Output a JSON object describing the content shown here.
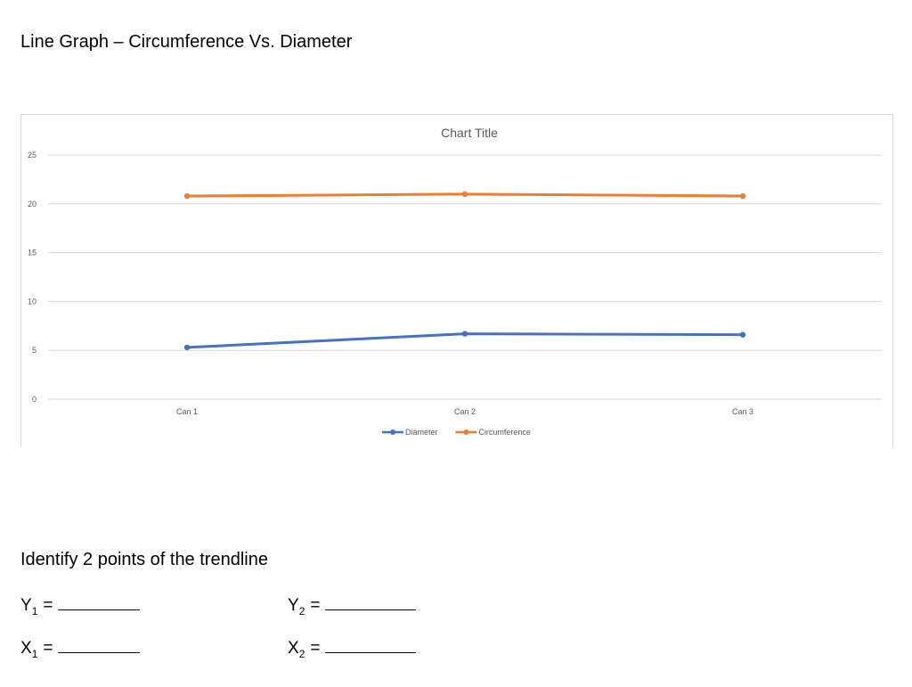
{
  "page": {
    "title": "Line Graph – Circumference Vs. Diameter",
    "trendline_heading": "Identify 2 points of the trendline"
  },
  "fields": {
    "y1": {
      "var": "Y",
      "sub": "1",
      "eq": "="
    },
    "y2": {
      "var": "Y",
      "sub": "2",
      "eq": "="
    },
    "x1": {
      "var": "X",
      "sub": "1",
      "eq": "="
    },
    "x2": {
      "var": "X",
      "sub": "2",
      "eq": "="
    }
  },
  "chart_data": {
    "type": "line",
    "title": "Chart Title",
    "categories": [
      "Can 1",
      "Can 2",
      "Can 3"
    ],
    "series": [
      {
        "name": "Diameter",
        "values": [
          5.3,
          6.7,
          6.6
        ],
        "color": "#4472c4"
      },
      {
        "name": "Circumference",
        "values": [
          20.8,
          21.0,
          20.8
        ],
        "color": "#ed7d31"
      }
    ],
    "yticks": [
      "0",
      "5",
      "10",
      "15",
      "20",
      "25"
    ],
    "ylim": [
      0,
      25
    ],
    "grid": true,
    "legend_position": "bottom"
  }
}
